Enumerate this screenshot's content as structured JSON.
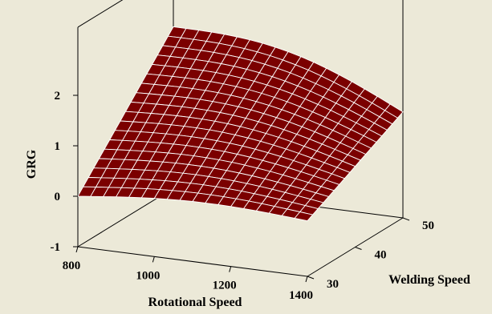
{
  "chart_data": {
    "type": "surface",
    "title": "",
    "background": "#ece9d8",
    "surface_color": "#7b0000",
    "mesh_color": "#ffffff",
    "zlabel": "GRG",
    "xlabel": "Rotational Speed",
    "ylabel": "Welding Speed",
    "z_ticks": [
      "-1",
      "0",
      "1",
      "2"
    ],
    "x_ticks": [
      "800",
      "1000",
      "1200",
      "1400"
    ],
    "y_ticks": [
      "30",
      "40",
      "50"
    ],
    "xlim": [
      800,
      1400
    ],
    "ylim": [
      30,
      50
    ],
    "zlim": [
      -1,
      2
    ],
    "corner_values": [
      {
        "x": 800,
        "y": 30,
        "z": 0.0
      },
      {
        "x": 1400,
        "y": 30,
        "z": 0.1
      },
      {
        "x": 800,
        "y": 50,
        "z": 2.2
      },
      {
        "x": 1400,
        "y": 50,
        "z": 1.1
      }
    ],
    "grid_lines": 18
  }
}
